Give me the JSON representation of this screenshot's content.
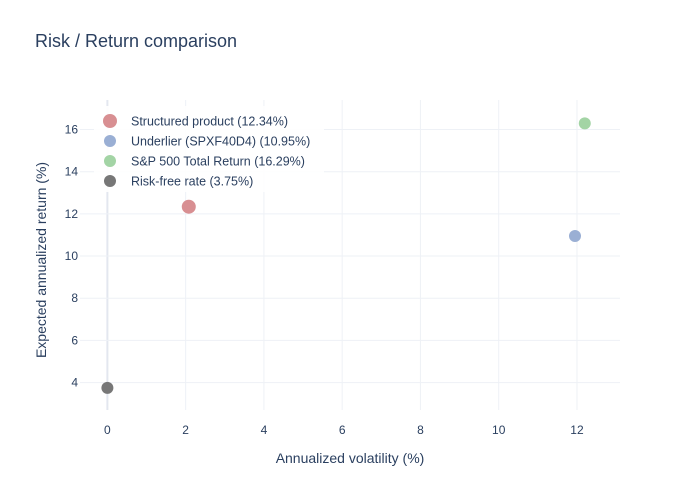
{
  "chart_data": {
    "type": "scatter",
    "title": "Risk / Return comparison",
    "xlabel": "Annualized volatility (%)",
    "ylabel": "Expected annualized return (%)",
    "xlim": [
      -0.7,
      13.1
    ],
    "ylim": [
      2.7,
      17.4
    ],
    "xticks": [
      0,
      2,
      4,
      6,
      8,
      10,
      12
    ],
    "yticks": [
      4,
      6,
      8,
      10,
      12,
      14,
      16
    ],
    "grid": true,
    "legend_position": "top-left",
    "series": [
      {
        "name": "Structured product (12.34%)",
        "color": "#d88f92",
        "x": [
          2.08
        ],
        "y": [
          12.34
        ],
        "marker_scale": "large"
      },
      {
        "name": "Underlier (SPXF40D4) (10.95%)",
        "color": "#9aafd4",
        "x": [
          11.95
        ],
        "y": [
          10.95
        ],
        "marker_scale": "medium"
      },
      {
        "name": "S&P 500 Total Return (16.29%)",
        "color": "#a3d4a5",
        "x": [
          12.2
        ],
        "y": [
          16.29
        ],
        "marker_scale": "medium"
      },
      {
        "name": "Risk-free rate (3.75%)",
        "color": "#777777",
        "x": [
          0
        ],
        "y": [
          3.75
        ],
        "marker_scale": "medium"
      }
    ]
  }
}
